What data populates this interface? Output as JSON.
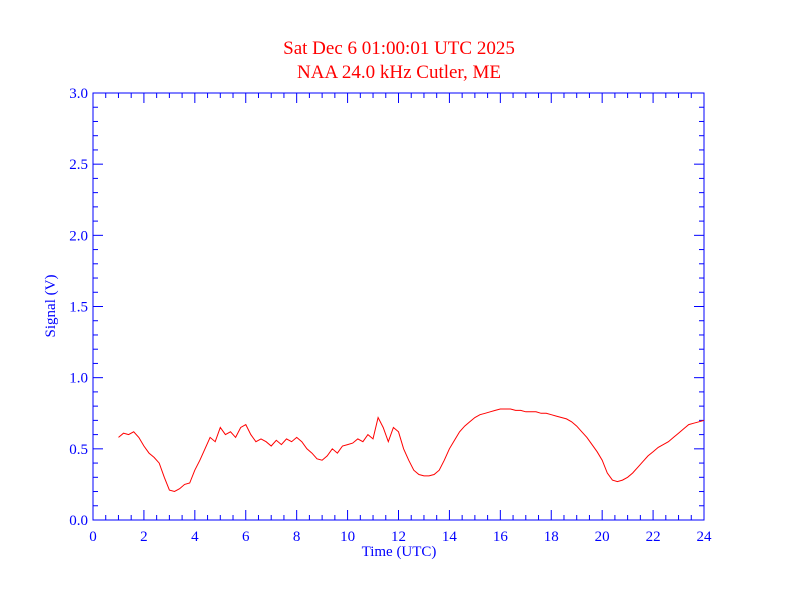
{
  "chart_data": {
    "type": "line",
    "title": "Sat Dec 6 01:00:01 UTC 2025",
    "subtitle": "NAA 24.0 kHz Cutler, ME",
    "xlabel": "Time (UTC)",
    "ylabel": "Signal (V)",
    "xlim": [
      0,
      24
    ],
    "ylim": [
      0,
      3.0
    ],
    "x_ticks": [
      "0",
      "2",
      "4",
      "6",
      "8",
      "10",
      "12",
      "14",
      "16",
      "18",
      "20",
      "22",
      "24"
    ],
    "y_ticks": [
      "0.0",
      "0.5",
      "1.0",
      "1.5",
      "2.0",
      "2.5",
      "3.0"
    ],
    "grid": false,
    "colors": {
      "axes": "#0000ff",
      "series": "#ff0000",
      "background": "#ffffff"
    },
    "series": [
      {
        "x": [
          1.0,
          1.2,
          1.4,
          1.6,
          1.8,
          2.0,
          2.2,
          2.4,
          2.6,
          2.8,
          3.0,
          3.2,
          3.4,
          3.6,
          3.8,
          4.0,
          4.2,
          4.4,
          4.6,
          4.8,
          5.0,
          5.2,
          5.4,
          5.6,
          5.8,
          6.0,
          6.2,
          6.4,
          6.6,
          6.8,
          7.0,
          7.2,
          7.4,
          7.6,
          7.8,
          8.0,
          8.2,
          8.4,
          8.6,
          8.8,
          9.0,
          9.2,
          9.4,
          9.6,
          9.8,
          10.0,
          10.2,
          10.4,
          10.6,
          10.8,
          11.0,
          11.2,
          11.4,
          11.6,
          11.8,
          12.0,
          12.2,
          12.4,
          12.6,
          12.8,
          13.0,
          13.2,
          13.4,
          13.6,
          13.8,
          14.0,
          14.2,
          14.4,
          14.6,
          14.8,
          15.0,
          15.2,
          15.4,
          15.6,
          15.8,
          16.0,
          16.2,
          16.4,
          16.6,
          16.8,
          17.0,
          17.2,
          17.4,
          17.6,
          17.8,
          18.0,
          18.2,
          18.4,
          18.6,
          18.8,
          19.0,
          19.2,
          19.4,
          19.6,
          19.8,
          20.0,
          20.2,
          20.4,
          20.6,
          20.8,
          21.0,
          21.2,
          21.4,
          21.6,
          21.8,
          22.0,
          22.2,
          22.4,
          22.6,
          22.8,
          23.0,
          23.2,
          23.4,
          23.6,
          23.8,
          24.0
        ],
        "values": [
          0.58,
          0.61,
          0.6,
          0.62,
          0.58,
          0.52,
          0.47,
          0.44,
          0.4,
          0.3,
          0.21,
          0.2,
          0.22,
          0.25,
          0.26,
          0.35,
          0.42,
          0.5,
          0.58,
          0.55,
          0.65,
          0.6,
          0.62,
          0.58,
          0.65,
          0.67,
          0.6,
          0.55,
          0.57,
          0.55,
          0.52,
          0.56,
          0.53,
          0.57,
          0.55,
          0.58,
          0.55,
          0.5,
          0.47,
          0.43,
          0.42,
          0.45,
          0.5,
          0.47,
          0.52,
          0.53,
          0.54,
          0.57,
          0.55,
          0.6,
          0.57,
          0.72,
          0.65,
          0.55,
          0.65,
          0.62,
          0.5,
          0.42,
          0.35,
          0.32,
          0.31,
          0.31,
          0.32,
          0.35,
          0.42,
          0.5,
          0.56,
          0.62,
          0.66,
          0.69,
          0.72,
          0.74,
          0.75,
          0.76,
          0.77,
          0.78,
          0.78,
          0.78,
          0.77,
          0.77,
          0.76,
          0.76,
          0.76,
          0.75,
          0.75,
          0.74,
          0.73,
          0.72,
          0.71,
          0.69,
          0.66,
          0.62,
          0.58,
          0.53,
          0.48,
          0.42,
          0.33,
          0.28,
          0.27,
          0.28,
          0.3,
          0.33,
          0.37,
          0.41,
          0.45,
          0.48,
          0.51,
          0.53,
          0.55,
          0.58,
          0.61,
          0.64,
          0.67,
          0.68,
          0.69,
          0.7
        ]
      }
    ]
  }
}
